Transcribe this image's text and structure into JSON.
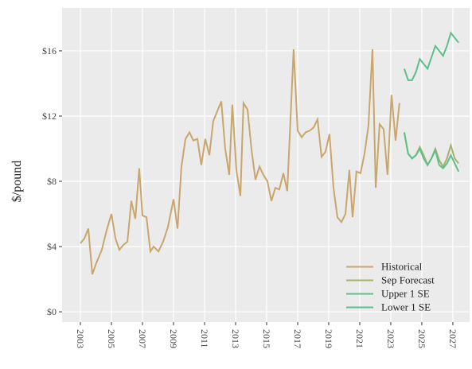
{
  "chart_data": {
    "type": "line",
    "y_label": "$/pound",
    "xlim": [
      2001.82,
      2028.08
    ],
    "xticks": [
      2003,
      2005,
      2007,
      2009,
      2011,
      2013,
      2015,
      2017,
      2019,
      2021,
      2023,
      2025,
      2027
    ],
    "ylim": [
      -0.63,
      18.63
    ],
    "yticks": [
      {
        "value": 0,
        "label": "$0"
      },
      {
        "value": 4,
        "label": "$4"
      },
      {
        "value": 8,
        "label": "$8"
      },
      {
        "value": 12,
        "label": "$12"
      },
      {
        "value": 16,
        "label": "$16"
      }
    ],
    "grid": true,
    "legend": "bottom-right",
    "series": [
      {
        "name": "Historical",
        "color": "#c9a66b",
        "x": [
          2003.0,
          2003.26,
          2003.51,
          2003.77,
          2004.03,
          2004.38,
          2004.69,
          2005.0,
          2005.26,
          2005.51,
          2005.77,
          2006.03,
          2006.28,
          2006.54,
          2006.79,
          2007.0,
          2007.26,
          2007.51,
          2007.72,
          2008.03,
          2008.33,
          2008.64,
          2009.0,
          2009.26,
          2009.51,
          2009.77,
          2010.03,
          2010.28,
          2010.54,
          2010.79,
          2011.05,
          2011.31,
          2011.56,
          2011.82,
          2012.08,
          2012.33,
          2012.59,
          2012.79,
          2013.05,
          2013.31,
          2013.51,
          2013.77,
          2014.03,
          2014.28,
          2014.54,
          2014.79,
          2015.05,
          2015.31,
          2015.56,
          2015.82,
          2016.08,
          2016.33,
          2016.74,
          2017.0,
          2017.26,
          2017.51,
          2017.77,
          2018.03,
          2018.28,
          2018.54,
          2018.79,
          2019.05,
          2019.31,
          2019.56,
          2019.82,
          2020.08,
          2020.33,
          2020.54,
          2020.79,
          2021.05,
          2021.31,
          2021.56,
          2021.82,
          2022.03,
          2022.28,
          2022.54,
          2022.79,
          2023.05,
          2023.31,
          2023.56
        ],
        "values": [
          4.2,
          4.5,
          5.1,
          2.3,
          3.0,
          3.8,
          5.0,
          6.0,
          4.5,
          3.8,
          4.1,
          4.3,
          6.8,
          5.7,
          8.8,
          5.9,
          5.8,
          3.7,
          4.0,
          3.7,
          4.3,
          5.2,
          6.9,
          5.1,
          8.9,
          10.6,
          11.0,
          10.5,
          10.6,
          9.0,
          10.6,
          9.6,
          11.7,
          12.3,
          12.9,
          10.0,
          8.4,
          12.7,
          8.7,
          7.1,
          12.8,
          12.4,
          9.9,
          8.1,
          8.9,
          8.4,
          8.0,
          6.8,
          7.6,
          7.5,
          8.5,
          7.4,
          16.1,
          11.1,
          10.7,
          11.0,
          11.1,
          11.3,
          11.8,
          9.5,
          9.8,
          10.9,
          7.6,
          5.8,
          5.5,
          6.0,
          8.7,
          5.8,
          8.6,
          8.5,
          9.7,
          11.4,
          16.1,
          7.6,
          11.5,
          11.2,
          8.4,
          13.3,
          10.5,
          12.8
        ]
      },
      {
        "name": "Sep Forecast",
        "color": "#a3b36c",
        "x": [
          2023.87,
          2024.12,
          2024.37,
          2024.62,
          2024.87,
          2025.12,
          2025.37,
          2025.62,
          2025.87,
          2026.12,
          2026.37,
          2026.62,
          2026.87,
          2027.12,
          2027.37
        ],
        "values": [
          11.0,
          9.7,
          9.4,
          9.6,
          10.1,
          9.6,
          9.0,
          9.4,
          10.0,
          9.3,
          8.9,
          9.4,
          10.2,
          9.4,
          9.1
        ]
      },
      {
        "name": "Upper 1 SE",
        "color": "#5dbf8b",
        "x": [
          2023.87,
          2024.12,
          2024.37,
          2024.62,
          2024.87,
          2025.12,
          2025.37,
          2025.62,
          2025.87,
          2026.12,
          2026.37,
          2026.62,
          2026.87,
          2027.12,
          2027.37
        ],
        "values": [
          14.9,
          14.2,
          14.2,
          14.7,
          15.5,
          15.2,
          14.9,
          15.6,
          16.3,
          16.0,
          15.7,
          16.3,
          17.1,
          16.8,
          16.5
        ]
      },
      {
        "name": "Lower 1 SE",
        "color": "#5dbf8b",
        "x": [
          2023.87,
          2024.12,
          2024.37,
          2024.62,
          2024.87,
          2025.12,
          2025.37,
          2025.62,
          2025.87,
          2026.12,
          2026.37,
          2026.62,
          2026.87,
          2027.12,
          2027.37
        ],
        "values": [
          11.0,
          9.7,
          9.4,
          9.6,
          10.0,
          9.4,
          9.0,
          9.4,
          9.9,
          9.0,
          8.8,
          9.1,
          9.6,
          9.1,
          8.6
        ]
      }
    ]
  }
}
